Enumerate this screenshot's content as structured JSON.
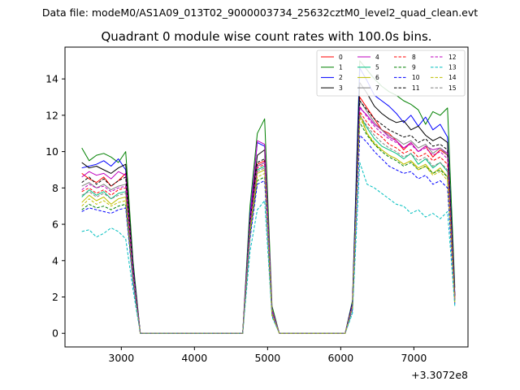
{
  "figure": {
    "suptitle": "Data file: modeM0/AS1A09_013T02_9000003734_25632cztM0_level2_quad_clean.evt",
    "title": "Quadrant 0 module wise count rates with 100.0s bins.",
    "offset_label": "+3.3072e8"
  },
  "chart_data": {
    "type": "line",
    "title": "Quadrant 0 module wise count rates with 100.0s bins.",
    "xlabel": "",
    "ylabel": "",
    "x_offset": "+3.3072e8",
    "xlim": [
      2230,
      7740
    ],
    "ylim": [
      -0.75,
      15.75
    ],
    "xticks": [
      3000,
      4000,
      5000,
      6000,
      7000
    ],
    "yticks": [
      0,
      2,
      4,
      6,
      8,
      10,
      12,
      14
    ],
    "legend_position": "top-right",
    "legend_columns": 4,
    "grid": false,
    "x": [
      2460,
      2560,
      2660,
      2760,
      2860,
      2960,
      3060,
      3160,
      3260,
      3360,
      3460,
      3560,
      3660,
      3760,
      3860,
      3960,
      4060,
      4160,
      4260,
      4360,
      4460,
      4560,
      4660,
      4760,
      4860,
      4960,
      5060,
      5160,
      5260,
      5360,
      5460,
      5560,
      5660,
      5760,
      5860,
      5960,
      6060,
      6160,
      6260,
      6360,
      6460,
      6560,
      6660,
      6760,
      6860,
      6960,
      7060,
      7160,
      7260,
      7360,
      7460,
      7560
    ],
    "series": [
      {
        "name": "0",
        "color": "#ff0000",
        "dashed": false,
        "values": [
          8.8,
          8.5,
          8.3,
          8.6,
          8.1,
          8.4,
          8.8,
          3.5,
          0,
          0,
          0,
          0,
          0,
          0,
          0,
          0,
          0,
          0,
          0,
          0,
          0,
          0,
          0,
          6.0,
          9.3,
          9.5,
          1.2,
          0,
          0,
          0,
          0,
          0,
          0,
          0,
          0,
          0,
          0,
          1.5,
          13.0,
          12.4,
          11.8,
          11.2,
          11.0,
          10.6,
          10.1,
          10.5,
          10.0,
          10.3,
          9.7,
          10.1,
          9.8,
          2.0
        ]
      },
      {
        "name": "1",
        "color": "#008000",
        "dashed": false,
        "values": [
          10.2,
          9.5,
          9.8,
          9.9,
          9.7,
          9.4,
          10.0,
          4.0,
          0,
          0,
          0,
          0,
          0,
          0,
          0,
          0,
          0,
          0,
          0,
          0,
          0,
          0,
          0,
          7.0,
          11.0,
          11.8,
          1.5,
          0,
          0,
          0,
          0,
          0,
          0,
          0,
          0,
          0,
          0,
          1.8,
          15.0,
          14.5,
          14.0,
          13.6,
          13.3,
          13.1,
          12.8,
          12.6,
          12.3,
          11.5,
          12.2,
          12.0,
          12.4,
          2.5
        ]
      },
      {
        "name": "2",
        "color": "#0000ff",
        "dashed": false,
        "values": [
          9.1,
          9.2,
          9.3,
          9.5,
          9.2,
          9.6,
          9.0,
          3.7,
          0,
          0,
          0,
          0,
          0,
          0,
          0,
          0,
          0,
          0,
          0,
          0,
          0,
          0,
          0,
          6.5,
          10.5,
          10.3,
          1.3,
          0,
          0,
          0,
          0,
          0,
          0,
          0,
          0,
          0,
          0,
          1.7,
          14.6,
          13.9,
          13.1,
          12.8,
          12.5,
          12.1,
          11.6,
          12.0,
          11.4,
          11.9,
          11.2,
          11.5,
          10.8,
          2.2
        ]
      },
      {
        "name": "3",
        "color": "#000000",
        "dashed": false,
        "values": [
          9.4,
          9.1,
          9.2,
          9.0,
          8.8,
          9.1,
          9.3,
          3.6,
          0,
          0,
          0,
          0,
          0,
          0,
          0,
          0,
          0,
          0,
          0,
          0,
          0,
          0,
          0,
          6.3,
          9.8,
          10.1,
          1.2,
          0,
          0,
          0,
          0,
          0,
          0,
          0,
          0,
          0,
          0,
          1.6,
          13.8,
          13.2,
          12.5,
          12.1,
          11.8,
          11.6,
          11.7,
          11.2,
          11.4,
          10.9,
          10.6,
          10.8,
          10.5,
          2.1
        ]
      },
      {
        "name": "4",
        "color": "#bf00bf",
        "dashed": false,
        "values": [
          8.6,
          8.9,
          8.7,
          8.8,
          8.5,
          8.9,
          8.7,
          3.5,
          0,
          0,
          0,
          0,
          0,
          0,
          0,
          0,
          0,
          0,
          0,
          0,
          0,
          0,
          0,
          6.2,
          10.6,
          10.4,
          1.3,
          0,
          0,
          0,
          0,
          0,
          0,
          0,
          0,
          0,
          0,
          1.6,
          12.4,
          12.0,
          11.5,
          11.2,
          10.8,
          10.6,
          10.2,
          10.5,
          10.0,
          10.3,
          10.1,
          10.2,
          9.9,
          2.0
        ]
      },
      {
        "name": "5",
        "color": "#00c080",
        "dashed": false,
        "values": [
          7.5,
          7.9,
          7.6,
          7.8,
          7.4,
          7.7,
          7.8,
          3.2,
          0,
          0,
          0,
          0,
          0,
          0,
          0,
          0,
          0,
          0,
          0,
          0,
          0,
          0,
          0,
          5.8,
          9.0,
          9.2,
          1.1,
          0,
          0,
          0,
          0,
          0,
          0,
          0,
          0,
          0,
          0,
          1.4,
          12.0,
          11.3,
          10.7,
          10.3,
          10.1,
          9.9,
          9.6,
          9.9,
          9.3,
          9.6,
          9.1,
          9.4,
          8.9,
          1.8
        ]
      },
      {
        "name": "6",
        "color": "#bfbf00",
        "dashed": false,
        "values": [
          7.2,
          7.6,
          7.3,
          7.5,
          7.1,
          7.4,
          7.5,
          3.0,
          0,
          0,
          0,
          0,
          0,
          0,
          0,
          0,
          0,
          0,
          0,
          0,
          0,
          0,
          0,
          5.6,
          8.8,
          9.0,
          1.1,
          0,
          0,
          0,
          0,
          0,
          0,
          0,
          0,
          0,
          0,
          1.4,
          12.1,
          11.0,
          10.4,
          10.1,
          9.8,
          9.6,
          9.3,
          9.5,
          9.1,
          9.3,
          8.8,
          9.1,
          8.6,
          1.8
        ]
      },
      {
        "name": "7",
        "color": "#808080",
        "dashed": false,
        "values": [
          8.1,
          8.3,
          8.0,
          8.2,
          7.9,
          8.1,
          8.2,
          3.3,
          0,
          0,
          0,
          0,
          0,
          0,
          0,
          0,
          0,
          0,
          0,
          0,
          0,
          0,
          0,
          6.0,
          9.2,
          9.4,
          1.2,
          0,
          0,
          0,
          0,
          0,
          0,
          0,
          0,
          0,
          0,
          1.5,
          12.8,
          12.2,
          11.6,
          11.2,
          10.9,
          10.7,
          10.4,
          10.6,
          10.2,
          10.4,
          9.9,
          10.2,
          9.8,
          1.9
        ]
      },
      {
        "name": "8",
        "color": "#ff0000",
        "dashed": true,
        "values": [
          7.8,
          8.0,
          7.7,
          7.9,
          7.6,
          7.9,
          8.0,
          3.2,
          0,
          0,
          0,
          0,
          0,
          0,
          0,
          0,
          0,
          0,
          0,
          0,
          0,
          0,
          0,
          5.9,
          9.1,
          9.3,
          1.1,
          0,
          0,
          0,
          0,
          0,
          0,
          0,
          0,
          0,
          0,
          1.5,
          12.2,
          11.6,
          11.1,
          10.8,
          10.4,
          10.2,
          9.9,
          10.1,
          9.7,
          9.9,
          9.5,
          9.7,
          9.3,
          1.9
        ]
      },
      {
        "name": "9",
        "color": "#008000",
        "dashed": true,
        "values": [
          6.8,
          7.1,
          6.9,
          7.0,
          6.8,
          7.0,
          7.1,
          2.9,
          0,
          0,
          0,
          0,
          0,
          0,
          0,
          0,
          0,
          0,
          0,
          0,
          0,
          0,
          0,
          5.4,
          8.4,
          8.6,
          1.0,
          0,
          0,
          0,
          0,
          0,
          0,
          0,
          0,
          0,
          0,
          1.3,
          11.6,
          10.9,
          10.4,
          10.0,
          9.7,
          9.5,
          9.2,
          9.4,
          9.0,
          9.2,
          8.8,
          9.0,
          8.6,
          1.7
        ]
      },
      {
        "name": "10",
        "color": "#0000ff",
        "dashed": true,
        "values": [
          6.7,
          6.9,
          6.8,
          6.7,
          6.6,
          6.8,
          6.9,
          2.8,
          0,
          0,
          0,
          0,
          0,
          0,
          0,
          0,
          0,
          0,
          0,
          0,
          0,
          0,
          0,
          5.2,
          8.2,
          8.4,
          1.0,
          0,
          0,
          0,
          0,
          0,
          0,
          0,
          0,
          0,
          0,
          1.3,
          10.9,
          10.5,
          10.0,
          9.6,
          9.2,
          9.0,
          8.8,
          8.9,
          8.5,
          8.7,
          8.2,
          8.4,
          8.0,
          1.6
        ]
      },
      {
        "name": "11",
        "color": "#000000",
        "dashed": true,
        "values": [
          8.3,
          8.6,
          8.2,
          8.5,
          8.1,
          8.4,
          8.6,
          3.4,
          0,
          0,
          0,
          0,
          0,
          0,
          0,
          0,
          0,
          0,
          0,
          0,
          0,
          0,
          0,
          6.1,
          9.4,
          9.6,
          1.2,
          0,
          0,
          0,
          0,
          0,
          0,
          0,
          0,
          0,
          0,
          1.6,
          12.8,
          12.3,
          11.8,
          11.5,
          11.2,
          11.0,
          10.8,
          10.9,
          10.5,
          10.7,
          10.3,
          10.4,
          10.1,
          2.0
        ]
      },
      {
        "name": "12",
        "color": "#bf00bf",
        "dashed": true,
        "values": [
          7.9,
          8.2,
          8.0,
          8.1,
          7.8,
          8.0,
          8.1,
          3.3,
          0,
          0,
          0,
          0,
          0,
          0,
          0,
          0,
          0,
          0,
          0,
          0,
          0,
          0,
          0,
          6.0,
          9.2,
          9.4,
          1.2,
          0,
          0,
          0,
          0,
          0,
          0,
          0,
          0,
          0,
          0,
          1.5,
          12.5,
          11.9,
          11.4,
          11.0,
          10.7,
          10.5,
          10.2,
          10.4,
          10.0,
          10.2,
          9.8,
          10.0,
          9.6,
          1.9
        ]
      },
      {
        "name": "13",
        "color": "#00bfbf",
        "dashed": true,
        "values": [
          5.6,
          5.7,
          5.3,
          5.5,
          5.8,
          5.6,
          5.2,
          2.4,
          0,
          0,
          0,
          0,
          0,
          0,
          0,
          0,
          0,
          0,
          0,
          0,
          0,
          0,
          0,
          4.5,
          6.8,
          7.3,
          0.9,
          0,
          0,
          0,
          0,
          0,
          0,
          0,
          0,
          0,
          0,
          1.1,
          9.4,
          8.2,
          8.0,
          7.7,
          7.4,
          7.1,
          7.0,
          6.6,
          6.8,
          6.4,
          6.6,
          6.3,
          6.7,
          1.5
        ]
      },
      {
        "name": "14",
        "color": "#bfbf00",
        "dashed": true,
        "values": [
          7.0,
          7.4,
          7.1,
          7.3,
          7.0,
          7.2,
          7.3,
          3.0,
          0,
          0,
          0,
          0,
          0,
          0,
          0,
          0,
          0,
          0,
          0,
          0,
          0,
          0,
          0,
          5.5,
          8.6,
          8.8,
          1.0,
          0,
          0,
          0,
          0,
          0,
          0,
          0,
          0,
          0,
          0,
          1.4,
          11.9,
          11.0,
          10.5,
          10.1,
          9.8,
          9.6,
          9.3,
          9.5,
          9.0,
          9.2,
          8.7,
          8.9,
          8.4,
          1.7
        ]
      },
      {
        "name": "15",
        "color": "#808080",
        "dashed": true,
        "values": [
          7.6,
          7.8,
          7.5,
          7.7,
          7.4,
          7.6,
          7.7,
          3.1,
          0,
          0,
          0,
          0,
          0,
          0,
          0,
          0,
          0,
          0,
          0,
          0,
          0,
          0,
          0,
          5.8,
          8.9,
          9.1,
          1.1,
          0,
          0,
          0,
          0,
          0,
          0,
          0,
          0,
          0,
          0,
          1.4,
          12.0,
          11.4,
          10.9,
          10.5,
          10.2,
          10.0,
          9.7,
          9.9,
          9.5,
          9.7,
          9.2,
          9.4,
          9.0,
          1.8
        ]
      }
    ]
  }
}
